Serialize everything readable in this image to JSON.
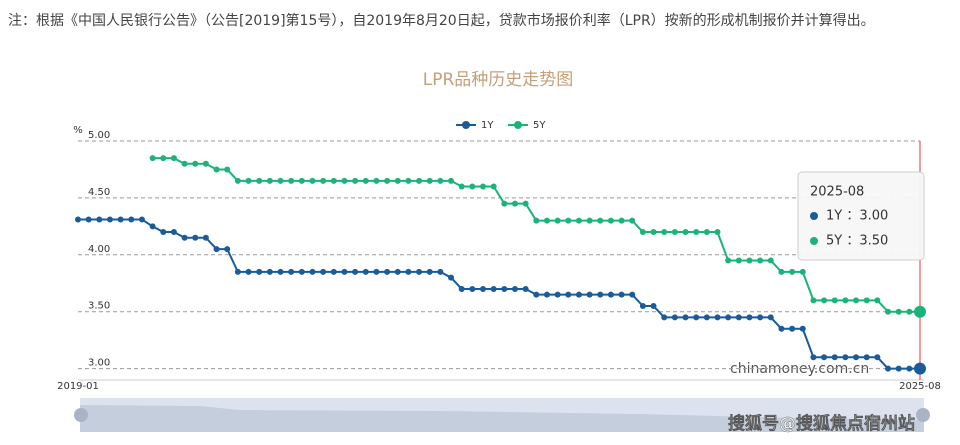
{
  "note": "注：根据《中国人民银行公告》（公告[2019]第15号），自2019年8月20日起，贷款市场报价利率（LPR）按新的形成机制报价并计算得出。",
  "watermark": "搜狐号@搜狐焦点宿州站",
  "chart_data": {
    "type": "line",
    "title": "LPR品种历史走势图",
    "y_label": "%",
    "source": "chinamoney.com.cn",
    "categories": [
      "2019-01",
      null,
      null,
      null,
      null,
      null,
      null,
      null,
      null,
      null,
      null,
      null,
      null,
      null,
      null,
      null,
      null,
      null,
      null,
      null,
      null,
      null,
      null,
      null,
      null,
      null,
      null,
      null,
      null,
      null,
      null,
      null,
      null,
      null,
      null,
      null,
      null,
      null,
      null,
      null,
      null,
      null,
      null,
      null,
      null,
      null,
      null,
      null,
      null,
      null,
      null,
      null,
      null,
      null,
      null,
      null,
      null,
      null,
      null,
      null,
      null,
      null,
      null,
      null,
      null,
      null,
      null,
      null,
      null,
      null,
      null,
      null,
      null,
      null,
      null,
      null,
      null,
      null,
      null,
      "2025-08"
    ],
    "series": [
      {
        "name": "1Y",
        "color": "#1a5b9c",
        "values": [
          4.31,
          4.31,
          4.31,
          4.31,
          4.31,
          4.31,
          4.31,
          4.25,
          4.2,
          4.2,
          4.15,
          4.15,
          4.15,
          4.05,
          4.05,
          3.85,
          3.85,
          3.85,
          3.85,
          3.85,
          3.85,
          3.85,
          3.85,
          3.85,
          3.85,
          3.85,
          3.85,
          3.85,
          3.85,
          3.85,
          3.85,
          3.85,
          3.85,
          3.85,
          3.85,
          3.8,
          3.7,
          3.7,
          3.7,
          3.7,
          3.7,
          3.7,
          3.7,
          3.65,
          3.65,
          3.65,
          3.65,
          3.65,
          3.65,
          3.65,
          3.65,
          3.65,
          3.65,
          3.55,
          3.55,
          3.45,
          3.45,
          3.45,
          3.45,
          3.45,
          3.45,
          3.45,
          3.45,
          3.45,
          3.45,
          3.45,
          3.35,
          3.35,
          3.35,
          3.1,
          3.1,
          3.1,
          3.1,
          3.1,
          3.1,
          3.1,
          3.0,
          3.0,
          3.0,
          3.0
        ]
      },
      {
        "name": "5Y",
        "color": "#1bb37a",
        "values": [
          null,
          null,
          null,
          null,
          null,
          null,
          null,
          4.85,
          4.85,
          4.85,
          4.8,
          4.8,
          4.8,
          4.75,
          4.75,
          4.65,
          4.65,
          4.65,
          4.65,
          4.65,
          4.65,
          4.65,
          4.65,
          4.65,
          4.65,
          4.65,
          4.65,
          4.65,
          4.65,
          4.65,
          4.65,
          4.65,
          4.65,
          4.65,
          4.65,
          4.65,
          4.6,
          4.6,
          4.6,
          4.6,
          4.45,
          4.45,
          4.45,
          4.3,
          4.3,
          4.3,
          4.3,
          4.3,
          4.3,
          4.3,
          4.3,
          4.3,
          4.3,
          4.2,
          4.2,
          4.2,
          4.2,
          4.2,
          4.2,
          4.2,
          4.2,
          3.95,
          3.95,
          3.95,
          3.95,
          3.95,
          3.85,
          3.85,
          3.85,
          3.6,
          3.6,
          3.6,
          3.6,
          3.6,
          3.6,
          3.6,
          3.5,
          3.5,
          3.5,
          3.5
        ]
      }
    ],
    "ylim": [
      2.9,
      5.0
    ],
    "yticks": [
      {
        "value": 3,
        "label": "3.00"
      },
      {
        "value": 3.5,
        "label": "3.50"
      },
      {
        "value": 4,
        "label": "4.00"
      },
      {
        "value": 4.5,
        "label": "4.50"
      },
      {
        "value": 5,
        "label": "5.00"
      }
    ],
    "grid": true,
    "legend": "top",
    "tooltip": {
      "title": "2025-08",
      "lines": [
        "1Y ：3.00",
        "5Y ：3.50"
      ]
    }
  }
}
